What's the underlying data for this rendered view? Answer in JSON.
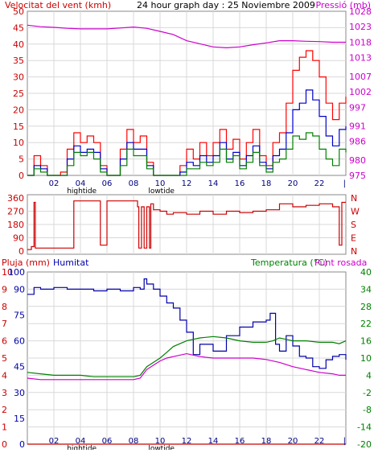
{
  "chart_data": [
    {
      "type": "line",
      "panel": "wind-speed-and-pressure",
      "title": "24 hour graph day : 25 Noviembre 2009",
      "ylabel": "Velocitat del vent (kmh)",
      "ylabel_right": "Pressió (mb)",
      "ylim": [
        0,
        50
      ],
      "ylim_right": [
        975,
        1028
      ],
      "y_ticks": [
        "0",
        "5",
        "10",
        "15",
        "20",
        "25",
        "30",
        "35",
        "40",
        "45",
        "50"
      ],
      "y_ticks_right": [
        "975",
        "980",
        "986",
        "991",
        "997",
        "1002",
        "1007",
        "1013",
        "1018",
        "1023",
        "1028"
      ],
      "x_ticks": [
        "02",
        "04",
        "06",
        "08",
        "10",
        "12",
        "14",
        "16",
        "18",
        "20",
        "22"
      ],
      "annotations": [
        "hightide",
        "lowtide"
      ],
      "end_marker": "|",
      "grid": true,
      "series": [
        {
          "name": "Pressió",
          "color": "#cc00cc",
          "axis": "right",
          "x": [
            0,
            1,
            2,
            3,
            4,
            5,
            6,
            7,
            8,
            9,
            10,
            11,
            12,
            13,
            14,
            15,
            16,
            17,
            18,
            19,
            20,
            21,
            22,
            23,
            24
          ],
          "y": [
            1023.5,
            1023,
            1022.8,
            1022.5,
            1022.3,
            1022.3,
            1022.3,
            1022.6,
            1022.9,
            1022.5,
            1021.5,
            1020.5,
            1018.5,
            1017.5,
            1016.5,
            1016.2,
            1016.5,
            1017.2,
            1017.8,
            1018.5,
            1018.5,
            1018.3,
            1018.2,
            1018,
            1018
          ]
        },
        {
          "name": "wind-gust",
          "color": "#ff0000",
          "axis": "left",
          "x": [
            0,
            0.5,
            1,
            1.5,
            2,
            2.5,
            3,
            3.5,
            4,
            4.5,
            5,
            5.5,
            6,
            6.5,
            7,
            7.5,
            8,
            8.5,
            9,
            9.5,
            10,
            10.5,
            11,
            11.5,
            12,
            12.5,
            13,
            13.5,
            14,
            14.5,
            15,
            15.5,
            16,
            16.5,
            17,
            17.5,
            18,
            18.5,
            19,
            19.5,
            20,
            20.5,
            21,
            21.5,
            22,
            22.5,
            23,
            23.5,
            24
          ],
          "y": [
            0,
            6,
            3,
            0,
            0,
            1,
            8,
            13,
            10,
            12,
            10,
            3,
            0,
            0,
            8,
            14,
            10,
            12,
            4,
            0,
            0,
            0,
            0,
            3,
            8,
            5,
            10,
            6,
            10,
            14,
            8,
            11,
            5,
            10,
            14,
            6,
            3,
            10,
            13,
            22,
            32,
            36,
            38,
            35,
            30,
            22,
            17,
            22,
            24
          ]
        },
        {
          "name": "wind-avg",
          "color": "#0000cc",
          "axis": "left",
          "x": [
            0,
            0.5,
            1,
            1.5,
            2,
            2.5,
            3,
            3.5,
            4,
            4.5,
            5,
            5.5,
            6,
            6.5,
            7,
            7.5,
            8,
            8.5,
            9,
            9.5,
            10,
            10.5,
            11,
            11.5,
            12,
            12.5,
            13,
            13.5,
            14,
            14.5,
            15,
            15.5,
            16,
            16.5,
            17,
            17.5,
            18,
            18.5,
            19,
            19.5,
            20,
            20.5,
            21,
            21.5,
            22,
            22.5,
            23,
            23.5,
            24
          ],
          "y": [
            0,
            3,
            2,
            0,
            0,
            0,
            5,
            9,
            7,
            8,
            7,
            2,
            0,
            0,
            5,
            10,
            8,
            8,
            3,
            0,
            0,
            0,
            0,
            1,
            4,
            3,
            6,
            4,
            6,
            10,
            5,
            7,
            3,
            6,
            9,
            4,
            2,
            6,
            8,
            13,
            20,
            22,
            26,
            23,
            18,
            12,
            9,
            14,
            15
          ]
        },
        {
          "name": "wind-min",
          "color": "#008000",
          "axis": "left",
          "x": [
            0,
            0.5,
            1,
            1.5,
            2,
            2.5,
            3,
            3.5,
            4,
            4.5,
            5,
            5.5,
            6,
            6.5,
            7,
            7.5,
            8,
            8.5,
            9,
            9.5,
            10,
            10.5,
            11,
            11.5,
            12,
            12.5,
            13,
            13.5,
            14,
            14.5,
            15,
            15.5,
            16,
            16.5,
            17,
            17.5,
            18,
            18.5,
            19,
            19.5,
            20,
            20.5,
            21,
            21.5,
            22,
            22.5,
            23,
            23.5,
            24
          ],
          "y": [
            0,
            2,
            1,
            0,
            0,
            0,
            3,
            7,
            6,
            7,
            5,
            1,
            0,
            0,
            3,
            8,
            6,
            6,
            2,
            0,
            0,
            0,
            0,
            0,
            2,
            2,
            4,
            3,
            4,
            8,
            4,
            6,
            2,
            4,
            7,
            3,
            1,
            4,
            5,
            8,
            12,
            11,
            13,
            12,
            8,
            5,
            3,
            8,
            7
          ]
        }
      ]
    },
    {
      "type": "line",
      "panel": "wind-direction",
      "y_ticks": [
        "0",
        "90",
        "180",
        "270",
        "360"
      ],
      "y_ticks_right": [
        "N",
        "E",
        "S",
        "W",
        "N"
      ],
      "ylim": [
        0,
        360
      ],
      "grid": true,
      "series": [
        {
          "name": "direction",
          "color": "#cc0000",
          "x": [
            0,
            0.3,
            0.5,
            0.6,
            1,
            2,
            3,
            3.4,
            3.5,
            4,
            4.5,
            5,
            5.5,
            5.8,
            6,
            6.5,
            7,
            7.5,
            8,
            8.3,
            8.4,
            8.6,
            8.8,
            9,
            9.2,
            9.3,
            9.5,
            10,
            10.5,
            11,
            12,
            13,
            14,
            15,
            16,
            17,
            18,
            19,
            20,
            21,
            22,
            23,
            23.5,
            23.7,
            24
          ],
          "y": [
            10,
            30,
            330,
            20,
            20,
            20,
            20,
            20,
            340,
            340,
            340,
            340,
            40,
            40,
            340,
            340,
            340,
            340,
            340,
            300,
            20,
            300,
            20,
            300,
            20,
            320,
            280,
            270,
            250,
            260,
            250,
            270,
            250,
            270,
            260,
            270,
            280,
            320,
            300,
            310,
            320,
            300,
            40,
            330,
            330
          ]
        }
      ]
    },
    {
      "type": "line",
      "panel": "rain-humidity-temperature",
      "labels": [
        "Pluja (mm)",
        "Humitat",
        "Temperatura (°C)",
        "Punt rosada"
      ],
      "y_ticks_rain": [
        "0",
        "1",
        "2",
        "3",
        "4",
        "5",
        "6",
        "7",
        "8",
        "9",
        "10"
      ],
      "y_ticks_humidity": [
        "0",
        "15",
        "30",
        "45",
        "60",
        "75",
        "90",
        "100"
      ],
      "y_ticks_temp": [
        "-20",
        "-14",
        "-8",
        "-2",
        "4",
        "10",
        "16",
        "22",
        "28",
        "34",
        "40"
      ],
      "ylim_left": [
        0,
        10
      ],
      "ylim_right": [
        -20,
        40
      ],
      "x_ticks": [
        "02",
        "04",
        "06",
        "08",
        "10",
        "12",
        "14",
        "16",
        "18",
        "20",
        "22"
      ],
      "annotations": [
        "hightide",
        "lowtide"
      ],
      "end_marker": "|",
      "grid": true,
      "series": [
        {
          "name": "Pluja",
          "color": "#cc0000",
          "axis": "rain",
          "x": [
            0,
            24
          ],
          "y": [
            0,
            0
          ]
        },
        {
          "name": "Humitat",
          "color": "#0000aa",
          "axis": "humidity",
          "x": [
            0,
            0.5,
            1,
            2,
            3,
            4,
            5,
            6,
            7,
            8,
            8.5,
            8.8,
            9,
            9.5,
            10,
            10.5,
            11,
            11.5,
            12,
            12.5,
            13,
            14,
            15,
            16,
            17,
            18,
            18.3,
            18.7,
            19,
            19.5,
            20,
            20.5,
            21,
            21.5,
            22,
            22.5,
            23,
            23.5,
            24
          ],
          "y": [
            87,
            91,
            90,
            91,
            90,
            90,
            89,
            90,
            89,
            91,
            90,
            96,
            93,
            90,
            86,
            82,
            79,
            72,
            65,
            52,
            58,
            54,
            63,
            68,
            71,
            72,
            76,
            58,
            54,
            63,
            57,
            51,
            50,
            45,
            44,
            49,
            51,
            52,
            49
          ]
        },
        {
          "name": "Temperatura",
          "color": "#008000",
          "axis": "temp",
          "x": [
            0,
            1,
            2,
            3,
            4,
            5,
            6,
            7,
            8,
            8.5,
            9,
            9.5,
            10,
            10.5,
            11,
            12,
            13,
            14,
            15,
            16,
            17,
            18,
            18.5,
            19,
            19.5,
            20,
            21,
            22,
            23,
            23.5,
            24
          ],
          "y": [
            5,
            4.5,
            4,
            4,
            4,
            3.5,
            3.5,
            3.5,
            3.5,
            4,
            7,
            8.5,
            10,
            12,
            14,
            16,
            17,
            17.5,
            17,
            16,
            15.5,
            15.5,
            16,
            17,
            16.5,
            16,
            16,
            15.5,
            15.5,
            15,
            16
          ]
        },
        {
          "name": "Punt rosada",
          "color": "#cc00cc",
          "axis": "temp",
          "x": [
            0,
            1,
            2,
            3,
            4,
            5,
            6,
            7,
            8,
            8.5,
            9,
            9.5,
            10,
            10.5,
            11,
            12,
            13,
            14,
            15,
            16,
            17,
            18,
            19,
            20,
            21,
            22,
            23,
            23.5,
            24
          ],
          "y": [
            3,
            2.5,
            2.5,
            2.5,
            2.5,
            2.5,
            2.5,
            2.5,
            2.5,
            3,
            6,
            7.5,
            9,
            10,
            10.5,
            11.5,
            10.5,
            10,
            10,
            10,
            10,
            9.5,
            8.5,
            7,
            6,
            5,
            4.5,
            4,
            4
          ]
        }
      ]
    }
  ]
}
